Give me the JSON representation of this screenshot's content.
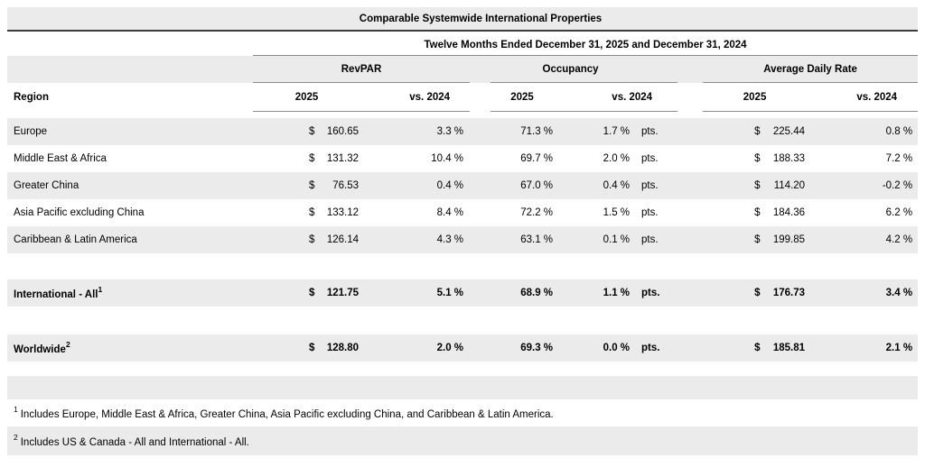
{
  "title": "Comparable Systemwide International Properties",
  "subtitle": "Twelve Months Ended December 31, 2025 and December 31, 2024",
  "colors": {
    "band": "#ebebeb",
    "rule": "#8c8c8c",
    "title_rule": "#3d3d3d"
  },
  "table": {
    "region_header": "Region",
    "groups": [
      {
        "label": "RevPAR",
        "col_2025": "2025",
        "col_vs": "vs. 2024"
      },
      {
        "label": "Occupancy",
        "col_2025": "2025",
        "col_vs": "vs. 2024"
      },
      {
        "label": "Average Daily Rate",
        "col_2025": "2025",
        "col_vs": "vs. 2024"
      }
    ],
    "pts_label": "pts.",
    "currency_symbol": "$",
    "rows": [
      {
        "region": "Europe",
        "sup": "",
        "revpar_cur": "$",
        "revpar_2025": "160.65",
        "revpar_vs": "3.3 %",
        "occ_2025": "71.3 %",
        "occ_vs": "1.7 %",
        "occ_pts": "pts.",
        "adr_cur": "$",
        "adr_2025": "225.44",
        "adr_vs": "0.8 %"
      },
      {
        "region": "Middle East & Africa",
        "sup": "",
        "revpar_cur": "$",
        "revpar_2025": "131.32",
        "revpar_vs": "10.4 %",
        "occ_2025": "69.7 %",
        "occ_vs": "2.0 %",
        "occ_pts": "pts.",
        "adr_cur": "$",
        "adr_2025": "188.33",
        "adr_vs": "7.2 %"
      },
      {
        "region": "Greater China",
        "sup": "",
        "revpar_cur": "$",
        "revpar_2025": "76.53",
        "revpar_vs": "0.4 %",
        "occ_2025": "67.0 %",
        "occ_vs": "0.4 %",
        "occ_pts": "pts.",
        "adr_cur": "$",
        "adr_2025": "114.20",
        "adr_vs": "-0.2 %"
      },
      {
        "region": "Asia Pacific excluding China",
        "sup": "",
        "revpar_cur": "$",
        "revpar_2025": "133.12",
        "revpar_vs": "8.4 %",
        "occ_2025": "72.2 %",
        "occ_vs": "1.5 %",
        "occ_pts": "pts.",
        "adr_cur": "$",
        "adr_2025": "184.36",
        "adr_vs": "6.2 %"
      },
      {
        "region": "Caribbean & Latin America",
        "sup": "",
        "revpar_cur": "$",
        "revpar_2025": "126.14",
        "revpar_vs": "4.3 %",
        "occ_2025": "63.1 %",
        "occ_vs": "0.1 %",
        "occ_pts": "pts.",
        "adr_cur": "$",
        "adr_2025": "199.85",
        "adr_vs": "4.2 %"
      },
      {
        "region": "International - All",
        "sup": "1",
        "revpar_cur": "$",
        "revpar_2025": "121.75",
        "revpar_vs": "5.1 %",
        "occ_2025": "68.9 %",
        "occ_vs": "1.1 %",
        "occ_pts": "pts.",
        "adr_cur": "$",
        "adr_2025": "176.73",
        "adr_vs": "3.4 %"
      },
      {
        "region": "Worldwide",
        "sup": "2",
        "revpar_cur": "$",
        "revpar_2025": "128.80",
        "revpar_vs": "2.0 %",
        "occ_2025": "69.3 %",
        "occ_vs": "0.0 %",
        "occ_pts": "pts.",
        "adr_cur": "$",
        "adr_2025": "185.81",
        "adr_vs": "2.1 %"
      }
    ]
  },
  "footnotes": [
    {
      "sup": "1",
      "text": "Includes Europe, Middle East & Africa, Greater China, Asia Pacific excluding China, and Caribbean & Latin America."
    },
    {
      "sup": "2",
      "text": "Includes US & Canada - All and International - All."
    }
  ]
}
